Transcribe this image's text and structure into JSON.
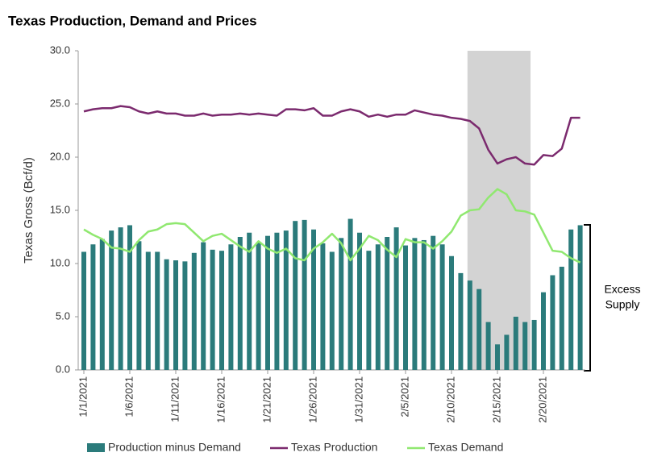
{
  "chart_data": {
    "type": "bar_line",
    "title": "Texas Production, Demand and Prices",
    "y_label": "Texas Gross (Bcf/d)",
    "annotation": [
      "Excess",
      "Supply"
    ],
    "categories": [
      "1/1/2021",
      null,
      null,
      null,
      null,
      "1/6/2021",
      null,
      null,
      null,
      null,
      "1/11/2021",
      null,
      null,
      null,
      null,
      "1/16/2021",
      null,
      null,
      null,
      null,
      "1/21/2021",
      null,
      null,
      null,
      null,
      "1/26/2021",
      null,
      null,
      null,
      null,
      "1/31/2021",
      null,
      null,
      null,
      null,
      "2/5/2021",
      null,
      null,
      null,
      null,
      "2/10/2021",
      null,
      null,
      null,
      null,
      "2/15/2021",
      null,
      null,
      null,
      null,
      "2/20/2021",
      null,
      null,
      null,
      null
    ],
    "ylim": [
      0,
      30
    ],
    "yticks": [
      {
        "value": 0,
        "label": "0.0"
      },
      {
        "value": 5,
        "label": "5.0"
      },
      {
        "value": 10,
        "label": "10.0"
      },
      {
        "value": 15,
        "label": "15.0"
      },
      {
        "value": 20,
        "label": "20.0"
      },
      {
        "value": 25,
        "label": "25.0"
      },
      {
        "value": 30,
        "label": "30.0"
      }
    ],
    "highlight": {
      "from": 42,
      "to": 48.6,
      "color": "#d3d3d3"
    },
    "series": [
      {
        "name": "Production minus Demand",
        "kind": "bar",
        "color": "#2b7b7b",
        "values": [
          11.1,
          11.8,
          12.3,
          13.1,
          13.4,
          13.6,
          12.1,
          11.1,
          11.1,
          10.4,
          10.3,
          10.2,
          11.0,
          12.0,
          11.3,
          11.2,
          11.8,
          12.5,
          12.9,
          12.0,
          12.6,
          12.9,
          13.1,
          14.0,
          14.1,
          13.2,
          11.9,
          11.1,
          12.4,
          14.2,
          12.9,
          11.2,
          11.8,
          12.5,
          13.4,
          11.7,
          12.4,
          12.2,
          12.6,
          11.8,
          10.7,
          9.1,
          8.4,
          7.6,
          4.5,
          2.4,
          3.3,
          5.0,
          4.5,
          4.7,
          7.3,
          8.9,
          9.7,
          13.2,
          13.6
        ]
      },
      {
        "name": "Texas Production",
        "kind": "line",
        "color": "#7b2a6e",
        "values": [
          24.3,
          24.5,
          24.6,
          24.6,
          24.8,
          24.7,
          24.3,
          24.1,
          24.3,
          24.1,
          24.1,
          23.9,
          23.9,
          24.1,
          23.9,
          24.0,
          24.0,
          24.1,
          24.0,
          24.1,
          24.0,
          23.9,
          24.5,
          24.5,
          24.4,
          24.6,
          23.9,
          23.9,
          24.3,
          24.5,
          24.3,
          23.8,
          24.0,
          23.8,
          24.0,
          24.0,
          24.4,
          24.2,
          24.0,
          23.9,
          23.7,
          23.6,
          23.4,
          22.7,
          20.7,
          19.4,
          19.8,
          20.0,
          19.4,
          19.3,
          20.2,
          20.1,
          20.8,
          23.7,
          23.7
        ]
      },
      {
        "name": "Texas Demand",
        "kind": "line",
        "color": "#90e870",
        "values": [
          13.2,
          12.7,
          12.3,
          11.5,
          11.4,
          11.1,
          12.2,
          13.0,
          13.2,
          13.7,
          13.8,
          13.7,
          12.9,
          12.1,
          12.6,
          12.8,
          12.2,
          11.6,
          11.1,
          12.1,
          11.4,
          11.0,
          11.4,
          10.5,
          10.3,
          11.4,
          12.0,
          12.8,
          11.9,
          10.3,
          11.4,
          12.6,
          12.2,
          11.3,
          10.6,
          12.3,
          12.0,
          12.0,
          11.4,
          12.1,
          13.0,
          14.5,
          15.0,
          15.1,
          16.2,
          17.0,
          16.5,
          15.0,
          14.9,
          14.6,
          12.9,
          11.2,
          11.1,
          10.5,
          10.1
        ]
      }
    ]
  }
}
